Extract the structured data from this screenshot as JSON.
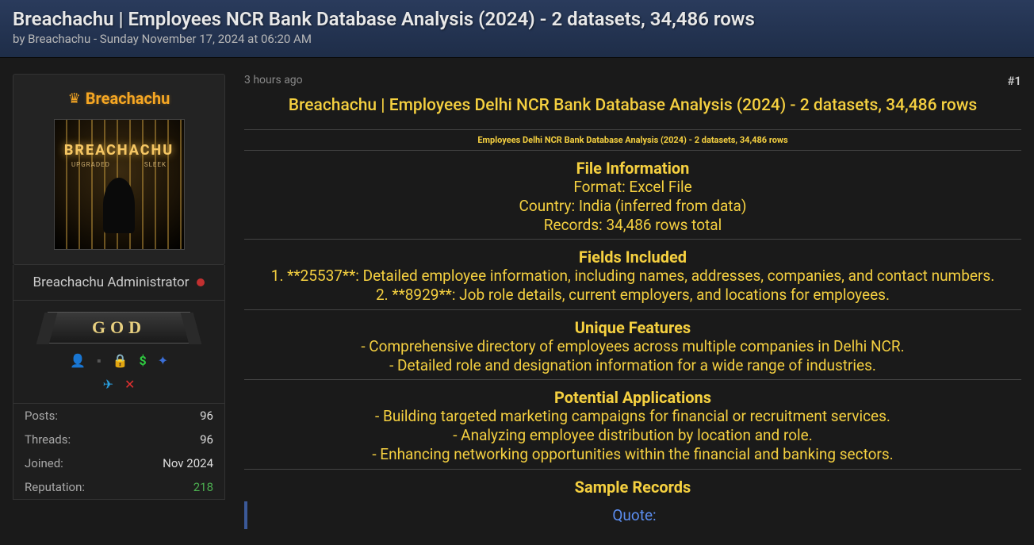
{
  "header": {
    "title": "Breachachu | Employees NCR Bank Database Analysis (2024) - 2 datasets, 34,486 rows",
    "byline": "by Breachachu - Sunday November 17, 2024 at 06:20 AM"
  },
  "user": {
    "name": "Breachachu",
    "avatar_text": "BREACHACHU",
    "avatar_sub_left": "UPGRADED",
    "avatar_sub_right": "SLEEK",
    "role": "Breachachu Administrator",
    "badge": "GOD",
    "stats": {
      "posts_label": "Posts:",
      "posts_value": "96",
      "threads_label": "Threads:",
      "threads_value": "96",
      "joined_label": "Joined:",
      "joined_value": "Nov 2024",
      "reputation_label": "Reputation:",
      "reputation_value": "218"
    },
    "colors": {
      "username": "#f5a623",
      "reputation": "#4caf50"
    }
  },
  "post": {
    "time_ago": "3 hours ago",
    "post_number": "#1",
    "title": "Breachachu | Employees Delhi NCR Bank Database Analysis (2024) - 2 datasets, 34,486 rows",
    "small_heading": "Employees Delhi NCR Bank Database Analysis (2024) - 2 datasets, 34,486 rows",
    "sections": {
      "file_info": {
        "heading": "File Information",
        "lines": [
          "Format: Excel File",
          "Country: India (inferred from data)",
          "Records: 34,486 rows total"
        ]
      },
      "fields": {
        "heading": "Fields Included",
        "lines": [
          "1. **25537**: Detailed employee information, including names, addresses, companies, and contact numbers.",
          "2. **8929**: Job role details, current employers, and locations for employees."
        ]
      },
      "features": {
        "heading": "Unique Features",
        "lines": [
          "- Comprehensive directory of employees across multiple companies in Delhi NCR.",
          "- Detailed role and designation information for a wide range of industries."
        ]
      },
      "applications": {
        "heading": "Potential Applications",
        "lines": [
          "- Building targeted marketing campaigns for financial or recruitment services.",
          "- Analyzing employee distribution by location and role.",
          "- Enhancing networking opportunities within the financial and banking sectors."
        ]
      },
      "sample": {
        "heading": "Sample Records",
        "quote_label": "Quote:"
      }
    },
    "colors": {
      "heading": "#f5d040",
      "quote_border": "#3b5998",
      "quote_text": "#5b8def"
    }
  }
}
